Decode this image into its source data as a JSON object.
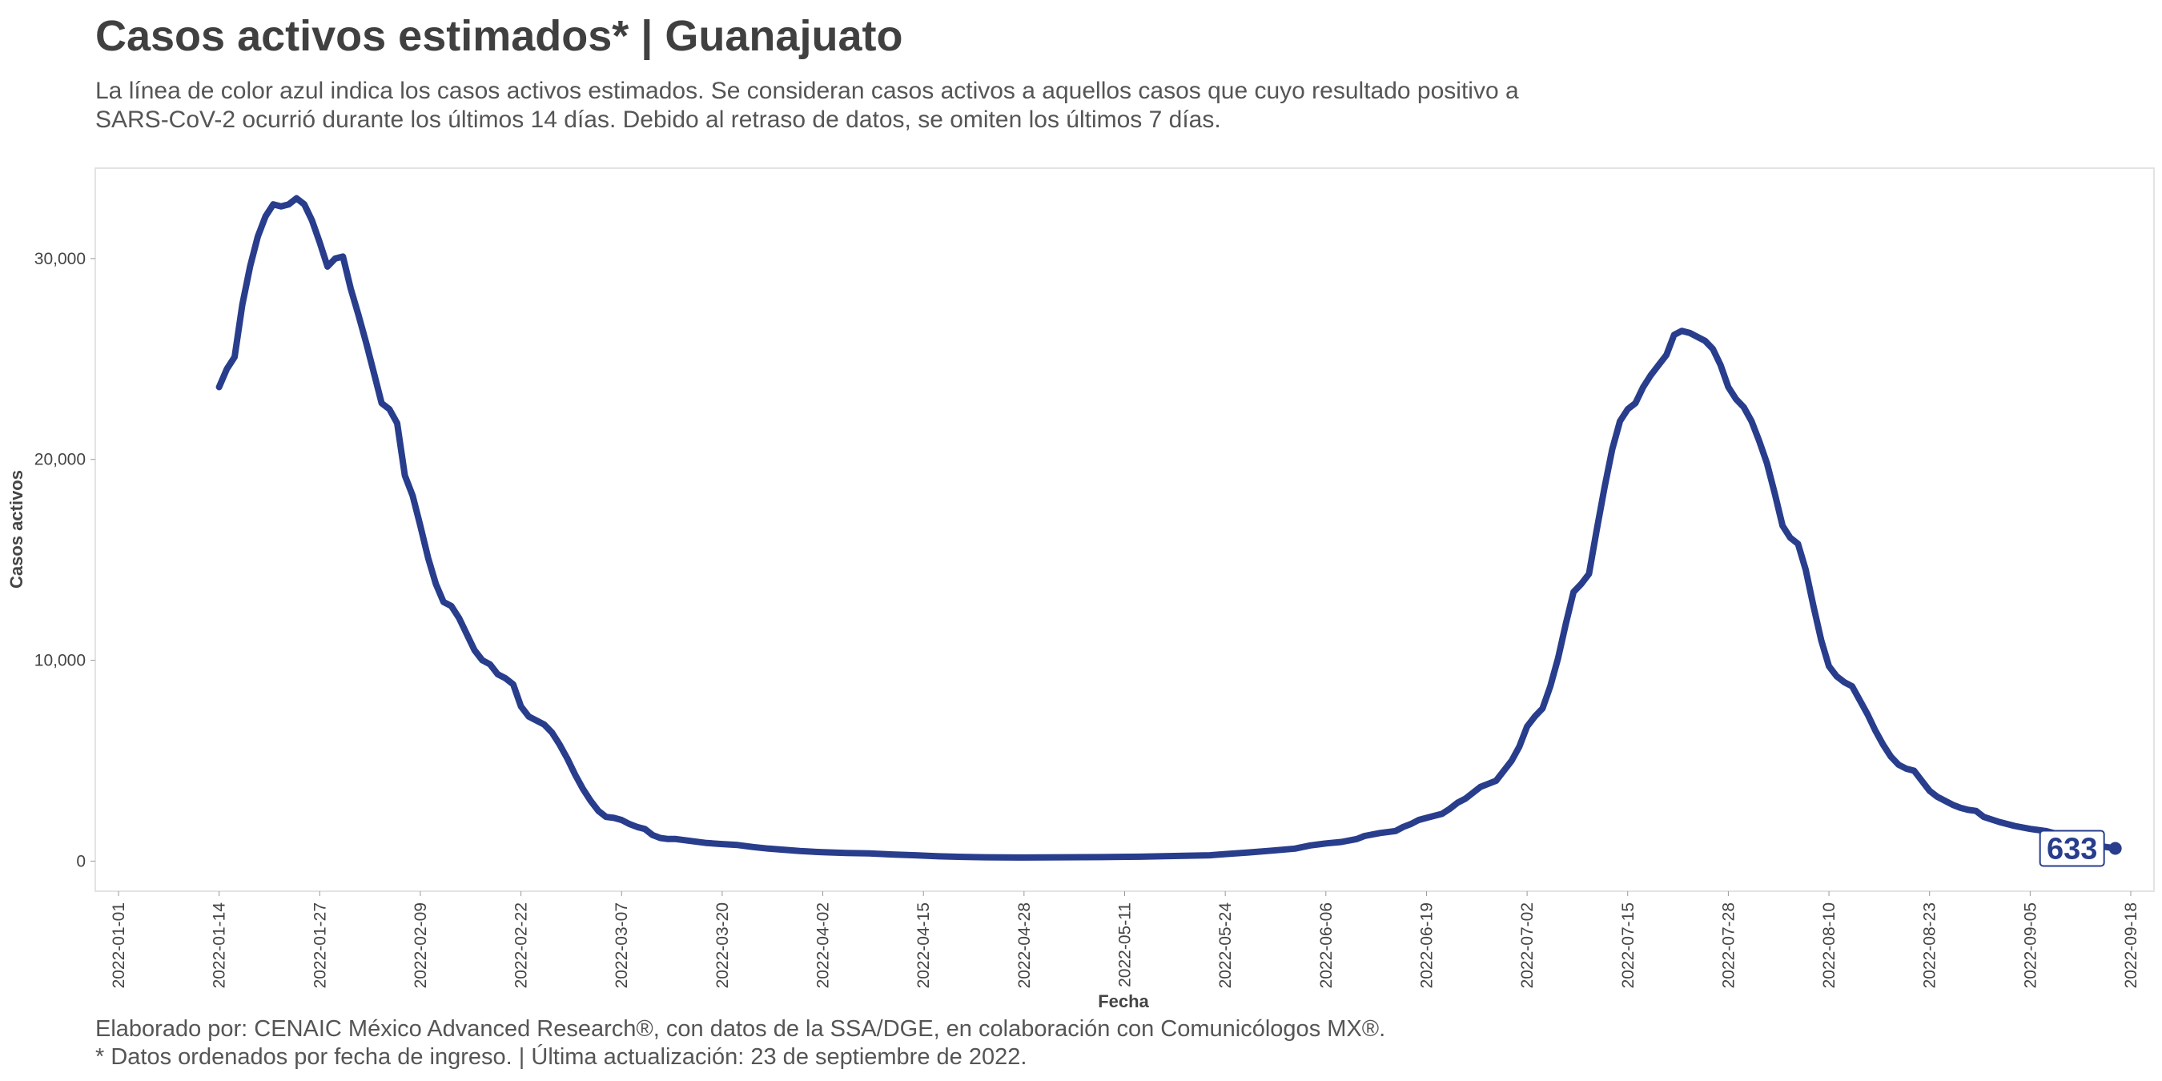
{
  "header": {
    "title": "Casos activos estimados* | Guanajuato",
    "subtitle": "La línea de color azul indica los casos activos estimados. Se consideran casos activos a aquellos casos que cuyo resultado positivo a SARS-CoV-2 ocurrió durante los últimos 14 días. Debido al retraso de datos, se omiten los últimos 7 días."
  },
  "footer": {
    "line1": "Elaborado por: CENAIC México Advanced Research®, con datos de la SSA/DGE, en colaboración con Comunicólogos MX®.",
    "line2": "* Datos ordenados por fecha de ingreso. | Última actualización: 23 de septiembre de 2022."
  },
  "colors": {
    "line": "#283d8c",
    "text": "#404040",
    "panel_border": "#e3e3e3"
  },
  "chart_data": {
    "type": "line",
    "xlabel": "Fecha",
    "ylabel": "Casos activos",
    "x_start": "2022-01-01",
    "x_end": "2022-09-18",
    "xlim": [
      "2021-12-29",
      "2022-09-21"
    ],
    "ylim": [
      -1500,
      34500
    ],
    "grid": false,
    "x_tick_labels": [
      "2022-01-01",
      "2022-01-14",
      "2022-01-27",
      "2022-02-09",
      "2022-02-22",
      "2022-03-07",
      "2022-03-20",
      "2022-04-02",
      "2022-04-15",
      "2022-04-28",
      "2022-05-11",
      "2022-05-24",
      "2022-06-06",
      "2022-06-19",
      "2022-07-02",
      "2022-07-15",
      "2022-07-28",
      "2022-08-10",
      "2022-08-23",
      "2022-09-05",
      "2022-09-18"
    ],
    "y_ticks": [
      0,
      10000,
      20000,
      30000
    ],
    "y_tick_labels": [
      "0",
      "10,000",
      "20,000",
      "30,000"
    ],
    "end_label": "633",
    "series": [
      {
        "points": [
          [
            "2022-01-14",
            23600
          ],
          [
            "2022-01-15",
            24500
          ],
          [
            "2022-01-16",
            25100
          ],
          [
            "2022-01-17",
            27700
          ],
          [
            "2022-01-18",
            29600
          ],
          [
            "2022-01-19",
            31100
          ],
          [
            "2022-01-20",
            32100
          ],
          [
            "2022-01-21",
            32700
          ],
          [
            "2022-01-22",
            32600
          ],
          [
            "2022-01-23",
            32700
          ],
          [
            "2022-01-24",
            33000
          ],
          [
            "2022-01-25",
            32700
          ],
          [
            "2022-01-26",
            31900
          ],
          [
            "2022-01-27",
            30800
          ],
          [
            "2022-01-28",
            29600
          ],
          [
            "2022-01-29",
            30000
          ],
          [
            "2022-01-30",
            30100
          ],
          [
            "2022-01-31",
            28500
          ],
          [
            "2022-02-01",
            27200
          ],
          [
            "2022-02-02",
            25800
          ],
          [
            "2022-02-03",
            24300
          ],
          [
            "2022-02-04",
            22800
          ],
          [
            "2022-02-05",
            22500
          ],
          [
            "2022-02-06",
            21800
          ],
          [
            "2022-02-07",
            19200
          ],
          [
            "2022-02-08",
            18200
          ],
          [
            "2022-02-09",
            16700
          ],
          [
            "2022-02-10",
            15100
          ],
          [
            "2022-02-11",
            13800
          ],
          [
            "2022-02-12",
            12900
          ],
          [
            "2022-02-13",
            12700
          ],
          [
            "2022-02-14",
            12100
          ],
          [
            "2022-02-15",
            11300
          ],
          [
            "2022-02-16",
            10500
          ],
          [
            "2022-02-17",
            10000
          ],
          [
            "2022-02-18",
            9800
          ],
          [
            "2022-02-19",
            9300
          ],
          [
            "2022-02-20",
            9100
          ],
          [
            "2022-02-21",
            8800
          ],
          [
            "2022-02-22",
            7700
          ],
          [
            "2022-02-23",
            7200
          ],
          [
            "2022-02-24",
            7000
          ],
          [
            "2022-02-25",
            6800
          ],
          [
            "2022-02-26",
            6400
          ],
          [
            "2022-02-27",
            5800
          ],
          [
            "2022-02-28",
            5100
          ],
          [
            "2022-03-01",
            4300
          ],
          [
            "2022-03-02",
            3600
          ],
          [
            "2022-03-03",
            3000
          ],
          [
            "2022-03-04",
            2500
          ],
          [
            "2022-03-05",
            2200
          ],
          [
            "2022-03-06",
            2150
          ],
          [
            "2022-03-07",
            2050
          ],
          [
            "2022-03-08",
            1850
          ],
          [
            "2022-03-09",
            1700
          ],
          [
            "2022-03-10",
            1600
          ],
          [
            "2022-03-11",
            1300
          ],
          [
            "2022-03-12",
            1150
          ],
          [
            "2022-03-13",
            1100
          ],
          [
            "2022-03-14",
            1100
          ],
          [
            "2022-03-16",
            1000
          ],
          [
            "2022-03-18",
            900
          ],
          [
            "2022-03-20",
            850
          ],
          [
            "2022-03-22",
            800
          ],
          [
            "2022-03-24",
            700
          ],
          [
            "2022-03-26",
            620
          ],
          [
            "2022-03-28",
            560
          ],
          [
            "2022-03-30",
            500
          ],
          [
            "2022-04-02",
            440
          ],
          [
            "2022-04-05",
            400
          ],
          [
            "2022-04-08",
            380
          ],
          [
            "2022-04-11",
            330
          ],
          [
            "2022-04-14",
            290
          ],
          [
            "2022-04-17",
            240
          ],
          [
            "2022-04-20",
            210
          ],
          [
            "2022-04-23",
            190
          ],
          [
            "2022-04-28",
            180
          ],
          [
            "2022-05-03",
            190
          ],
          [
            "2022-05-08",
            200
          ],
          [
            "2022-05-13",
            220
          ],
          [
            "2022-05-18",
            260
          ],
          [
            "2022-05-22",
            290
          ],
          [
            "2022-05-24",
            350
          ],
          [
            "2022-05-27",
            430
          ],
          [
            "2022-05-30",
            520
          ],
          [
            "2022-06-02",
            620
          ],
          [
            "2022-06-04",
            780
          ],
          [
            "2022-06-06",
            880
          ],
          [
            "2022-06-08",
            950
          ],
          [
            "2022-06-10",
            1100
          ],
          [
            "2022-06-11",
            1250
          ],
          [
            "2022-06-13",
            1400
          ],
          [
            "2022-06-15",
            1500
          ],
          [
            "2022-06-16",
            1700
          ],
          [
            "2022-06-17",
            1850
          ],
          [
            "2022-06-18",
            2050
          ],
          [
            "2022-06-19",
            2150
          ],
          [
            "2022-06-20",
            2250
          ],
          [
            "2022-06-21",
            2350
          ],
          [
            "2022-06-22",
            2600
          ],
          [
            "2022-06-23",
            2900
          ],
          [
            "2022-06-24",
            3100
          ],
          [
            "2022-06-25",
            3400
          ],
          [
            "2022-06-26",
            3700
          ],
          [
            "2022-06-27",
            3850
          ],
          [
            "2022-06-28",
            4000
          ],
          [
            "2022-06-29",
            4500
          ],
          [
            "2022-06-30",
            5000
          ],
          [
            "2022-07-01",
            5700
          ],
          [
            "2022-07-02",
            6700
          ],
          [
            "2022-07-03",
            7200
          ],
          [
            "2022-07-04",
            7600
          ],
          [
            "2022-07-05",
            8700
          ],
          [
            "2022-07-06",
            10100
          ],
          [
            "2022-07-07",
            11800
          ],
          [
            "2022-07-08",
            13400
          ],
          [
            "2022-07-09",
            13800
          ],
          [
            "2022-07-10",
            14300
          ],
          [
            "2022-07-11",
            16500
          ],
          [
            "2022-07-12",
            18600
          ],
          [
            "2022-07-13",
            20500
          ],
          [
            "2022-07-14",
            21900
          ],
          [
            "2022-07-15",
            22500
          ],
          [
            "2022-07-16",
            22800
          ],
          [
            "2022-07-17",
            23600
          ],
          [
            "2022-07-18",
            24200
          ],
          [
            "2022-07-19",
            24700
          ],
          [
            "2022-07-20",
            25200
          ],
          [
            "2022-07-21",
            26200
          ],
          [
            "2022-07-22",
            26400
          ],
          [
            "2022-07-23",
            26300
          ],
          [
            "2022-07-24",
            26100
          ],
          [
            "2022-07-25",
            25900
          ],
          [
            "2022-07-26",
            25500
          ],
          [
            "2022-07-27",
            24700
          ],
          [
            "2022-07-28",
            23600
          ],
          [
            "2022-07-29",
            23000
          ],
          [
            "2022-07-30",
            22600
          ],
          [
            "2022-07-31",
            21900
          ],
          [
            "2022-08-01",
            20900
          ],
          [
            "2022-08-02",
            19800
          ],
          [
            "2022-08-03",
            18300
          ],
          [
            "2022-08-04",
            16700
          ],
          [
            "2022-08-05",
            16100
          ],
          [
            "2022-08-06",
            15800
          ],
          [
            "2022-08-07",
            14500
          ],
          [
            "2022-08-08",
            12700
          ],
          [
            "2022-08-09",
            11000
          ],
          [
            "2022-08-10",
            9700
          ],
          [
            "2022-08-11",
            9200
          ],
          [
            "2022-08-12",
            8900
          ],
          [
            "2022-08-13",
            8700
          ],
          [
            "2022-08-14",
            8000
          ],
          [
            "2022-08-15",
            7300
          ],
          [
            "2022-08-16",
            6500
          ],
          [
            "2022-08-17",
            5800
          ],
          [
            "2022-08-18",
            5200
          ],
          [
            "2022-08-19",
            4800
          ],
          [
            "2022-08-20",
            4600
          ],
          [
            "2022-08-21",
            4500
          ],
          [
            "2022-08-22",
            4000
          ],
          [
            "2022-08-23",
            3500
          ],
          [
            "2022-08-24",
            3200
          ],
          [
            "2022-08-25",
            3000
          ],
          [
            "2022-08-26",
            2800
          ],
          [
            "2022-08-27",
            2650
          ],
          [
            "2022-08-28",
            2550
          ],
          [
            "2022-08-29",
            2500
          ],
          [
            "2022-08-30",
            2200
          ],
          [
            "2022-09-01",
            1950
          ],
          [
            "2022-09-03",
            1750
          ],
          [
            "2022-09-05",
            1600
          ],
          [
            "2022-09-07",
            1500
          ],
          [
            "2022-09-09",
            1300
          ],
          [
            "2022-09-12",
            900
          ],
          [
            "2022-09-14",
            750
          ],
          [
            "2022-09-16",
            633
          ]
        ]
      }
    ]
  }
}
